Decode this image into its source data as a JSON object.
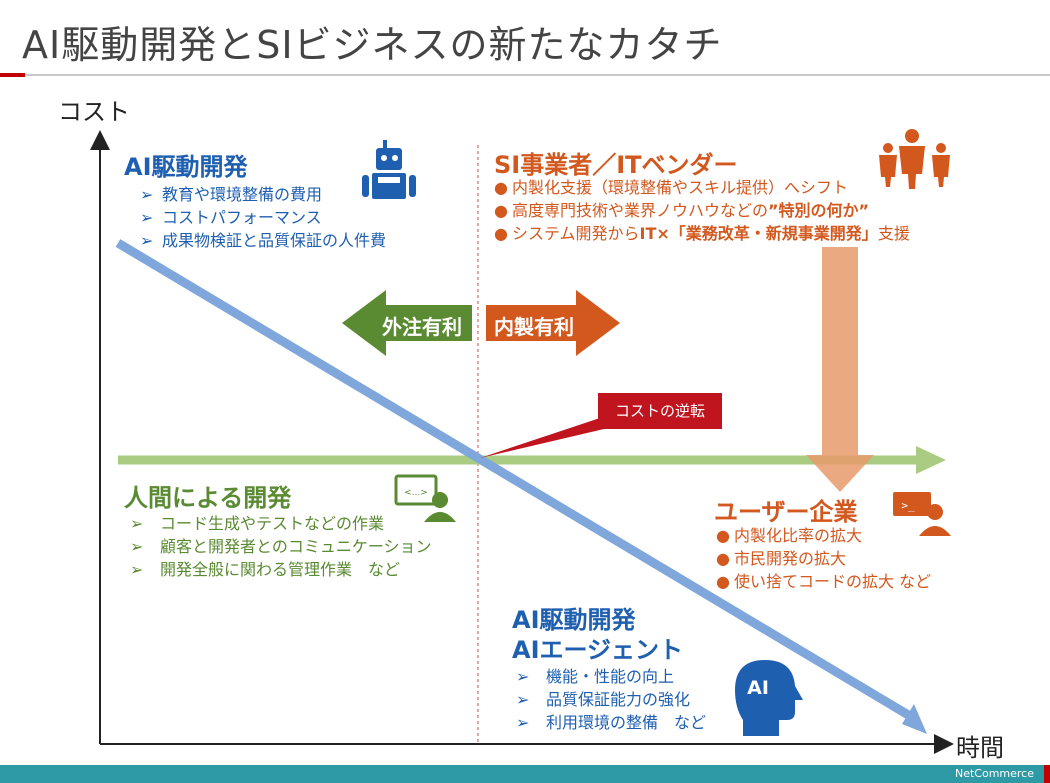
{
  "title": "AI駆動開発とSIビジネスの新たなカタチ",
  "axes": {
    "y_label": "コスト",
    "x_label": "時間"
  },
  "quadrants": {
    "top_left": {
      "heading": "AI駆動開発",
      "marker": "➢",
      "items": [
        "教育や環境整備の費用",
        "コストパフォーマンス",
        "成果物検証と品質保証の人件費"
      ],
      "icon": "robot-icon"
    },
    "top_right": {
      "heading": "SI事業者／ITベンダー",
      "marker": "●",
      "items": [
        {
          "before": "内製化支援（環境整備やスキル提供）へシフト",
          "bold": "",
          "after": ""
        },
        {
          "before": "高度専門技術や業界ノウハウなどの",
          "bold": "”特別の何か”",
          "after": ""
        },
        {
          "before": "システム開発から",
          "bold": "IT×「業務改革・新規事業開発」",
          "after": "支援"
        }
      ],
      "icon": "business-people-icon"
    },
    "middle_left": {
      "heading": "人間による開発",
      "marker": "➢",
      "items": [
        "コード生成やテストなどの作業",
        "顧客と開発者とのコミュニケーション",
        "開発全般に関わる管理作業　など"
      ],
      "icon": "developer-at-screen-icon",
      "icon_text": "<...>"
    },
    "middle_right": {
      "heading": "ユーザー企業",
      "marker": "●",
      "items": [
        "内製化比率の拡大",
        "市民開発の拡大",
        "使い捨てコードの拡大 など"
      ],
      "icon": "user-at-terminal-icon",
      "icon_text": ">_"
    },
    "bottom": {
      "heading_line1": "AI駆動開発",
      "heading_line2": "AIエージェント",
      "marker": "➢",
      "items": [
        "機能・性能の向上",
        "品質保証能力の強化",
        "利用環境の整備　など"
      ],
      "icon": "ai-head-icon",
      "icon_text": "AI"
    }
  },
  "arrows": {
    "left_label": "外注有利",
    "right_label": "内製有利"
  },
  "callout": "コストの逆転",
  "footer": {
    "logo": "NetCommerce"
  },
  "colors": {
    "blue": "#1f5fb0",
    "orange": "#d2581e",
    "green": "#5a8a32",
    "red": "#c0141e",
    "line_blue": "#7fa7db",
    "line_green": "#a9cc82"
  }
}
